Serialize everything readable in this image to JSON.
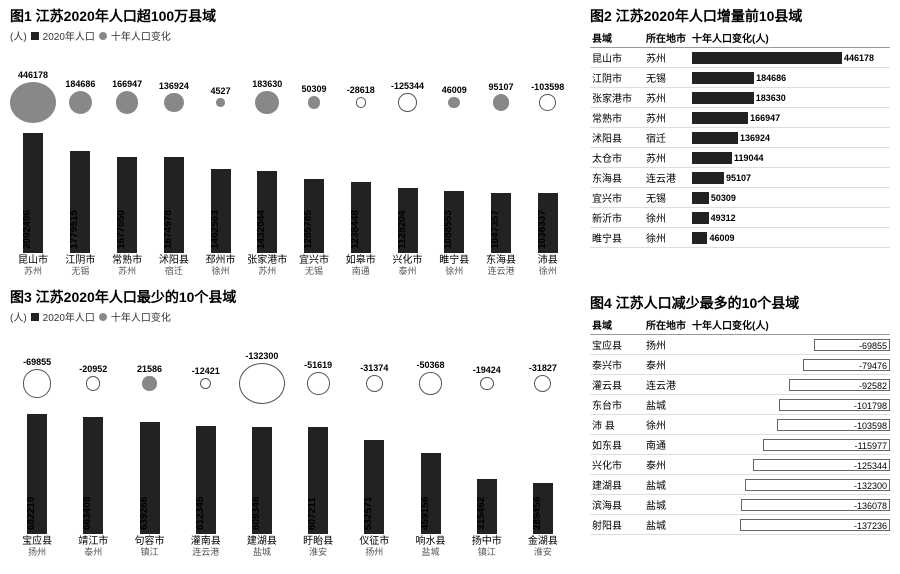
{
  "colors": {
    "bar": "#222222",
    "bubble_pos": "#888888",
    "bubble_neg_border": "#555555",
    "background": "#ffffff",
    "divider": "#dddddd"
  },
  "fig1": {
    "title": "图1 江苏2020年人口超100万县域",
    "unit": "(人)",
    "legend_pop": "2020年人口",
    "legend_change": "十年人口变化",
    "max_pop": 2092496,
    "max_abs_change": 446178,
    "items": [
      {
        "name": "昆山市",
        "city": "苏州",
        "pop": 2092496,
        "change": 446178
      },
      {
        "name": "江阴市",
        "city": "无锡",
        "pop": 1779515,
        "change": 184686
      },
      {
        "name": "常熟市",
        "city": "苏州",
        "pop": 1677050,
        "change": 166947
      },
      {
        "name": "沭阳县",
        "city": "宿迁",
        "pop": 1674978,
        "change": 136924
      },
      {
        "name": "邳州市",
        "city": "徐州",
        "pop": 1462563,
        "change": 4527
      },
      {
        "name": "张家港市",
        "city": "苏州",
        "pop": 1432044,
        "change": 183630
      },
      {
        "name": "宜兴市",
        "city": "无锡",
        "pop": 1285785,
        "change": 50309
      },
      {
        "name": "如皋市",
        "city": "南通",
        "pop": 1238448,
        "change": -28618
      },
      {
        "name": "兴化市",
        "city": "泰州",
        "pop": 1128204,
        "change": -125344
      },
      {
        "name": "睢宁县",
        "city": "徐州",
        "pop": 1088553,
        "change": 46009
      },
      {
        "name": "东海县",
        "city": "连云港",
        "pop": 1047357,
        "change": 95107
      },
      {
        "name": "沛县",
        "city": "徐州",
        "pop": 1038337,
        "change": -103598
      }
    ]
  },
  "fig2": {
    "title": "图2 江苏2020年人口增量前10县域",
    "col_county": "县域",
    "col_city": "所在地市",
    "col_change": "十年人口变化(人)",
    "max": 446178,
    "rows": [
      {
        "name": "昆山市",
        "city": "苏州",
        "val": 446178
      },
      {
        "name": "江阴市",
        "city": "无锡",
        "val": 184686
      },
      {
        "name": "张家港市",
        "city": "苏州",
        "val": 183630
      },
      {
        "name": "常熟市",
        "city": "苏州",
        "val": 166947
      },
      {
        "name": "沭阳县",
        "city": "宿迁",
        "val": 136924
      },
      {
        "name": "太仓市",
        "city": "苏州",
        "val": 119044
      },
      {
        "name": "东海县",
        "city": "连云港",
        "val": 95107
      },
      {
        "name": "宜兴市",
        "city": "无锡",
        "val": 50309
      },
      {
        "name": "新沂市",
        "city": "徐州",
        "val": 49312
      },
      {
        "name": "睢宁县",
        "city": "徐州",
        "val": 46009
      }
    ]
  },
  "fig3": {
    "title": "图3 江苏2020年人口最少的10个县域",
    "unit": "(人)",
    "legend_pop": "2020年人口",
    "legend_change": "十年人口变化",
    "max_pop": 682219,
    "max_abs_change": 132300,
    "items": [
      {
        "name": "宝应县",
        "city": "扬州",
        "pop": 682219,
        "change": -69855
      },
      {
        "name": "靖江市",
        "city": "泰州",
        "pop": 663408,
        "change": -20952
      },
      {
        "name": "句容市",
        "city": "镇江",
        "pop": 639266,
        "change": 21586
      },
      {
        "name": "灌南县",
        "city": "连云港",
        "pop": 612345,
        "change": -12421
      },
      {
        "name": "建湖县",
        "city": "盐城",
        "pop": 609346,
        "change": -132300
      },
      {
        "name": "盱眙县",
        "city": "淮安",
        "pop": 607211,
        "change": -51619
      },
      {
        "name": "仪征市",
        "city": "扬州",
        "pop": 532571,
        "change": -31374
      },
      {
        "name": "响水县",
        "city": "盐城",
        "pop": 459156,
        "change": -50368
      },
      {
        "name": "扬中市",
        "city": "镇江",
        "pop": 315462,
        "change": -19424
      },
      {
        "name": "金湖县",
        "city": "淮安",
        "pop": 289456,
        "change": -31827
      }
    ]
  },
  "fig4": {
    "title": "图4 江苏人口减少最多的10个县域",
    "col_county": "县域",
    "col_city": "所在地市",
    "col_change": "十年人口变化(人)",
    "max_abs": 137236,
    "rows": [
      {
        "name": "宝应县",
        "city": "扬州",
        "val": -69855
      },
      {
        "name": "泰兴市",
        "city": "泰州",
        "val": -79476
      },
      {
        "name": "灌云县",
        "city": "连云港",
        "val": -92582
      },
      {
        "name": "东台市",
        "city": "盐城",
        "val": -101798
      },
      {
        "name": "沛 县",
        "city": "徐州",
        "val": -103598
      },
      {
        "name": "如东县",
        "city": "南通",
        "val": -115977
      },
      {
        "name": "兴化市",
        "city": "泰州",
        "val": -125344
      },
      {
        "name": "建湖县",
        "city": "盐城",
        "val": -132300
      },
      {
        "name": "滨海县",
        "city": "盐城",
        "val": -136078
      },
      {
        "name": "射阳县",
        "city": "盐城",
        "val": -137236
      }
    ]
  }
}
